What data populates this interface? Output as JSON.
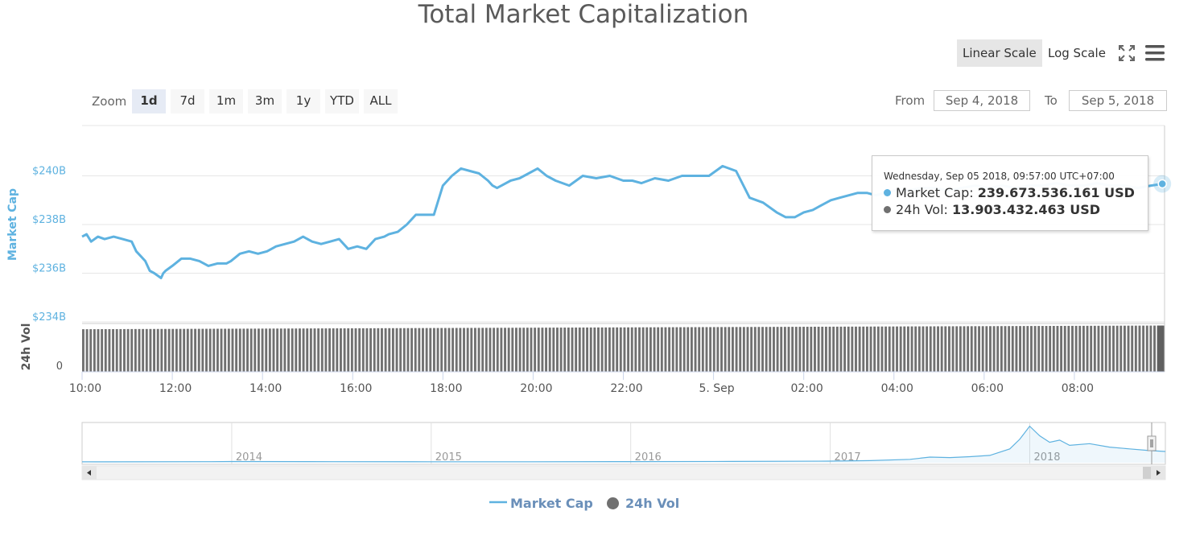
{
  "title": "Total Market Capitalization",
  "scale": {
    "linear_label": "Linear Scale",
    "log_label": "Log Scale",
    "active": "linear"
  },
  "icons": {
    "fullscreen": "fullscreen-icon",
    "menu": "hamburger-menu-icon"
  },
  "zoom": {
    "label": "Zoom",
    "options": [
      "1d",
      "7d",
      "1m",
      "3m",
      "1y",
      "YTD",
      "ALL"
    ],
    "active": "1d"
  },
  "range": {
    "from_label": "From",
    "from_value": "Sep 4, 2018",
    "to_label": "To",
    "to_value": "Sep 5, 2018"
  },
  "tooltip": {
    "date": "Wednesday, Sep 05 2018, 09:57:00 UTC+07:00",
    "market_cap_label": "Market Cap:",
    "market_cap_value": "239.673.536.161 USD",
    "vol_label": "24h Vol:",
    "vol_value": "13.903.432.463 USD"
  },
  "legend": {
    "market_cap": "Market Cap",
    "vol": "24h Vol"
  },
  "colors": {
    "market_cap": "#5eb2e0",
    "vol": "#707070",
    "axis_label": "#5eb2e0"
  },
  "chart_data": [
    {
      "type": "line",
      "series_name": "Market Cap",
      "ylabel": "Market Cap",
      "y_unit": "B USD",
      "ylim": [
        234,
        242
      ],
      "y_ticks": [
        234,
        236,
        238,
        240
      ],
      "y_tick_labels": [
        "$234B",
        "$236B",
        "$238B",
        "$240B"
      ],
      "x_unit": "hours since Sep 4 10:00",
      "x_ticks": [
        0,
        2,
        4,
        6,
        8,
        10,
        12,
        14,
        16,
        18,
        20,
        22
      ],
      "x_tick_labels": [
        "10:00",
        "12:00",
        "14:00",
        "16:00",
        "18:00",
        "20:00",
        "22:00",
        "5. Sep",
        "02:00",
        "04:00",
        "06:00",
        "08:00"
      ],
      "x_range": [
        0,
        24
      ],
      "x": [
        0,
        0.1,
        0.2,
        0.35,
        0.5,
        0.7,
        0.9,
        1.1,
        1.2,
        1.3,
        1.4,
        1.5,
        1.6,
        1.75,
        1.8,
        1.85,
        2.0,
        2.2,
        2.4,
        2.6,
        2.8,
        3.0,
        3.2,
        3.3,
        3.5,
        3.7,
        3.9,
        4.1,
        4.3,
        4.5,
        4.7,
        4.9,
        5.1,
        5.3,
        5.5,
        5.7,
        5.9,
        6.1,
        6.3,
        6.5,
        6.7,
        6.8,
        7.0,
        7.2,
        7.4,
        7.6,
        7.8,
        8.0,
        8.2,
        8.4,
        8.6,
        8.8,
        9.0,
        9.1,
        9.2,
        9.3,
        9.5,
        9.7,
        9.9,
        10.1,
        10.3,
        10.5,
        10.8,
        11.1,
        11.4,
        11.7,
        12.0,
        12.2,
        12.4,
        12.7,
        13.0,
        13.3,
        13.6,
        13.9,
        14.2,
        14.5,
        14.8,
        15.1,
        15.4,
        15.6,
        15.8,
        16.0,
        16.2,
        16.4,
        16.6,
        16.8,
        17.0,
        17.2,
        17.4,
        17.6,
        17.8,
        18.0,
        18.3,
        18.6,
        18.9,
        19.2,
        19.5,
        19.8,
        20.1,
        20.4,
        20.7,
        21.0,
        21.3,
        21.6,
        21.9,
        22.2,
        22.5,
        22.8,
        23.1,
        23.4,
        23.7,
        23.95
      ],
      "values": [
        237.5,
        237.6,
        237.3,
        237.5,
        237.4,
        237.5,
        237.4,
        237.3,
        236.9,
        236.7,
        236.5,
        236.1,
        236.0,
        235.8,
        236.0,
        236.1,
        236.3,
        236.6,
        236.6,
        236.5,
        236.3,
        236.4,
        236.4,
        236.5,
        236.8,
        236.9,
        236.8,
        236.9,
        237.1,
        237.2,
        237.3,
        237.5,
        237.3,
        237.2,
        237.3,
        237.4,
        237.0,
        237.1,
        237.0,
        237.4,
        237.5,
        237.6,
        237.7,
        238.0,
        238.4,
        238.4,
        238.4,
        239.6,
        240.0,
        240.3,
        240.2,
        240.1,
        239.8,
        239.6,
        239.5,
        239.6,
        239.8,
        239.9,
        240.1,
        240.3,
        240.0,
        239.8,
        239.6,
        240.0,
        239.9,
        240.0,
        239.8,
        239.8,
        239.7,
        239.9,
        239.8,
        240.0,
        240.0,
        240.0,
        240.4,
        240.2,
        239.1,
        238.9,
        238.5,
        238.3,
        238.3,
        238.5,
        238.6,
        238.8,
        239.0,
        239.1,
        239.2,
        239.3,
        239.3,
        239.2,
        239.3,
        239.4,
        239.4,
        239.5,
        239.5,
        239.4,
        239.5,
        239.6,
        239.5,
        239.6,
        239.5,
        239.6,
        239.6,
        239.7,
        239.6,
        239.6,
        239.7,
        239.6,
        239.6,
        239.5,
        239.6,
        239.67
      ]
    },
    {
      "type": "bar",
      "series_name": "24h Vol",
      "ylabel": "24h Vol",
      "y_tick_labels": [
        "0"
      ],
      "y_unit": "B USD",
      "ylim": [
        0,
        15
      ],
      "x_range": [
        0,
        24
      ],
      "start_value": 12.8,
      "end_value": 13.9,
      "bar_count": 290
    },
    {
      "type": "area",
      "series_name": "Navigator",
      "x_tick_labels": [
        "2014",
        "2015",
        "2016",
        "2017",
        "2018"
      ],
      "x_ticks": [
        2014,
        2015,
        2016,
        2017,
        2018
      ],
      "x_range": [
        2013.25,
        2018.68
      ],
      "x": [
        2013.25,
        2013.9,
        2014.0,
        2014.5,
        2015.0,
        2015.5,
        2016.0,
        2016.5,
        2017.0,
        2017.2,
        2017.4,
        2017.5,
        2017.6,
        2017.7,
        2017.8,
        2017.9,
        2017.95,
        2018.0,
        2018.05,
        2018.1,
        2018.15,
        2018.2,
        2018.3,
        2018.4,
        2018.5,
        2018.6,
        2018.68
      ],
      "values": [
        2,
        5,
        10,
        6,
        4,
        4,
        7,
        12,
        18,
        30,
        60,
        110,
        100,
        120,
        150,
        300,
        520,
        820,
        600,
        450,
        500,
        380,
        420,
        340,
        300,
        260,
        240
      ],
      "ylim": [
        0,
        850
      ]
    }
  ]
}
